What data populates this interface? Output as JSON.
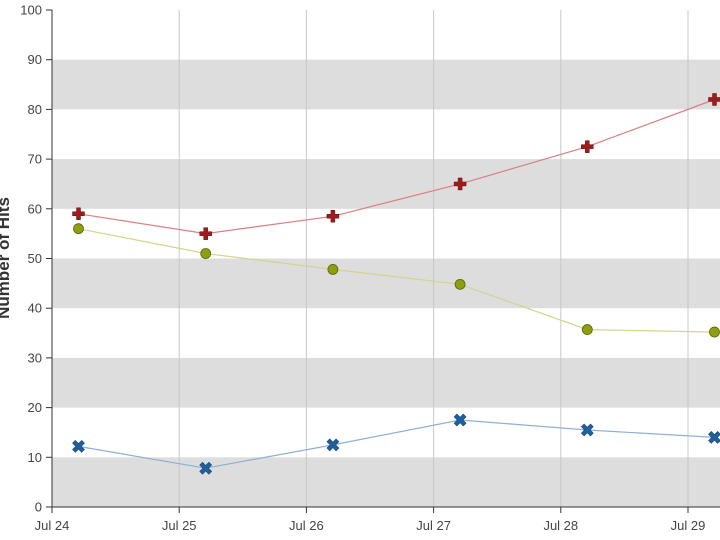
{
  "chart_data": {
    "type": "line",
    "title": "",
    "xlabel": "",
    "ylabel": "Number of Hits",
    "ylim": [
      0,
      100
    ],
    "yticks": [
      0,
      10,
      20,
      30,
      40,
      50,
      60,
      70,
      80,
      90,
      100
    ],
    "x_tick_labels": [
      "Jul 24",
      "Jul 25",
      "Jul 26",
      "Jul 27",
      "Jul 28",
      "Jul 29"
    ],
    "grid": true,
    "background_bands": {
      "fill": "#dddddd",
      "ranges": [
        [
          0,
          10
        ],
        [
          20,
          30
        ],
        [
          40,
          50
        ],
        [
          60,
          70
        ],
        [
          80,
          90
        ]
      ]
    },
    "x": [
      "Jul 24 05:00",
      "Jul 25 05:00",
      "Jul 26 05:00",
      "Jul 27 05:00",
      "Jul 28 05:00",
      "Jul 29 05:00"
    ],
    "series": [
      {
        "values": [
          59,
          55,
          58.5,
          65,
          72.5,
          82
        ],
        "color": "#9e1b1e",
        "line_color": "#d98080",
        "marker": "plus"
      },
      {
        "values": [
          56,
          51,
          47.8,
          44.8,
          35.7,
          35.2
        ],
        "color": "#8f9e10",
        "line_color": "#d2d68a",
        "marker": "circle"
      },
      {
        "values": [
          12.2,
          7.8,
          12.5,
          17.5,
          15.5,
          14
        ],
        "color": "#1f5f9e",
        "line_color": "#8fb0d2",
        "marker": "cross"
      }
    ]
  }
}
